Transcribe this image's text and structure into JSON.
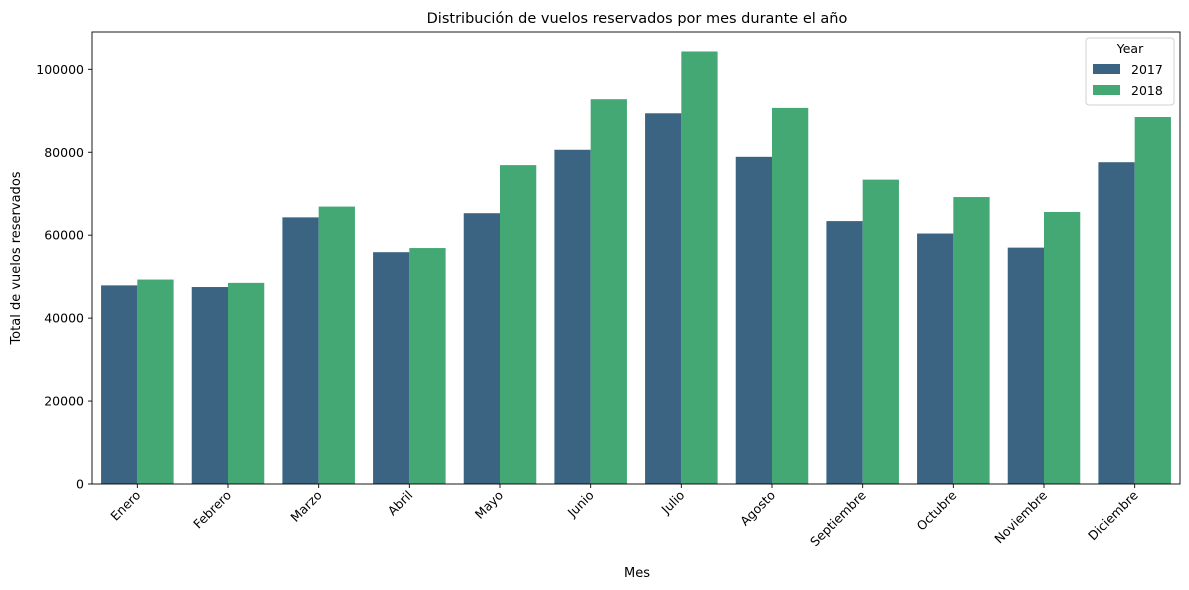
{
  "chart_data": {
    "type": "bar",
    "title": "Distribución de vuelos reservados por mes durante el año",
    "xlabel": "Mes",
    "ylabel": "Total de vuelos reservados",
    "categories": [
      "Enero",
      "Febrero",
      "Marzo",
      "Abril",
      "Mayo",
      "Junio",
      "Julio",
      "Agosto",
      "Septiembre",
      "Octubre",
      "Noviembre",
      "Diciembre"
    ],
    "series": [
      {
        "name": "2017",
        "color": "#3b6483",
        "values": [
          47900,
          47500,
          64300,
          55900,
          65300,
          80600,
          89400,
          78900,
          63400,
          60400,
          57000,
          77600
        ]
      },
      {
        "name": "2018",
        "color": "#43a874",
        "values": [
          49300,
          48500,
          66900,
          56900,
          76900,
          92800,
          104300,
          90700,
          73400,
          69200,
          65600,
          88500
        ]
      }
    ],
    "ylim": [
      0,
      109000
    ],
    "yticks": [
      0,
      20000,
      40000,
      60000,
      80000,
      100000
    ],
    "legend": {
      "title": "Year",
      "position": "top-right"
    },
    "grid": false
  }
}
